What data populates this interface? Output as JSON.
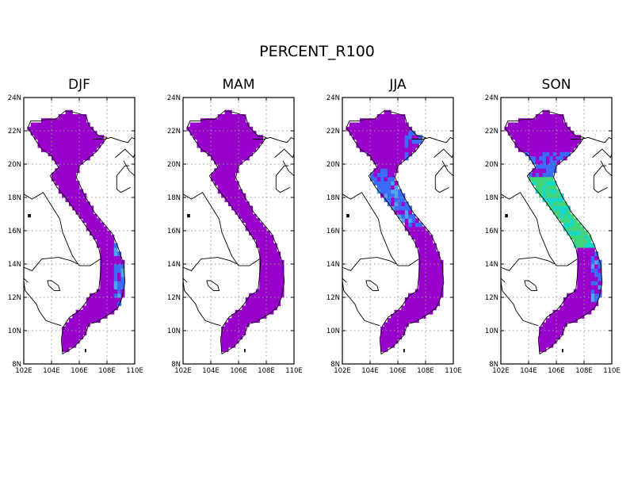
{
  "title": "PERCENT_R100",
  "panels": [
    {
      "title": "DJF",
      "variant": "djf"
    },
    {
      "title": "MAM",
      "variant": "mam"
    },
    {
      "title": "JJA",
      "variant": "jja"
    },
    {
      "title": "SON",
      "variant": "son"
    }
  ],
  "axes": {
    "lon_ticks": [
      "102E",
      "104E",
      "106E",
      "108E",
      "110E"
    ],
    "lat_ticks": [
      "8N",
      "10N",
      "12N",
      "14N",
      "16N",
      "18N",
      "20N",
      "22N",
      "24N"
    ],
    "lon_range": [
      102,
      110
    ],
    "lat_range": [
      8,
      24
    ],
    "grid": "dotted"
  },
  "colors": {
    "base": "#9900cc",
    "blue": "#3b6cf5",
    "light_blue": "#4fa6f0",
    "cyan": "#17d8c6",
    "green": "#3fd67a"
  }
}
